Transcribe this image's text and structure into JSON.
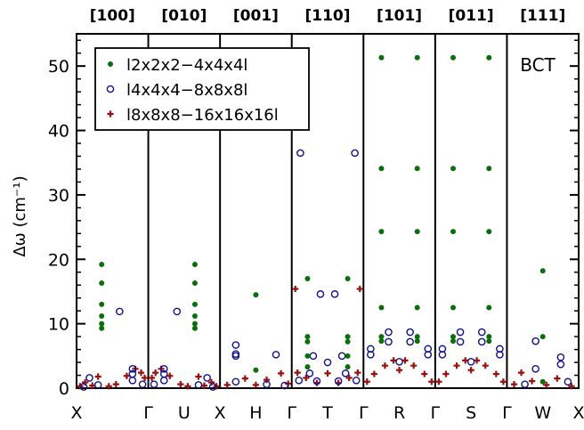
{
  "chart_data": {
    "type": "scatter",
    "title": "",
    "xlabel": "",
    "ylabel": "Δω (cm⁻¹)",
    "ylim": [
      0,
      55
    ],
    "yticks": [
      0,
      10,
      20,
      30,
      40,
      50
    ],
    "grid": false,
    "legend_placement": "top-left",
    "annotation": "BCT",
    "segments": [
      "[100]",
      "[010]",
      "[001]",
      "[110]",
      "[101]",
      "[011]",
      "[111]"
    ],
    "xlim": [
      0,
      7
    ],
    "boundaries": [
      1,
      2,
      3,
      4,
      5,
      6
    ],
    "xticks": [
      {
        "x": 0,
        "label": "X"
      },
      {
        "x": 1,
        "label": "Γ"
      },
      {
        "x": 1.5,
        "label": "U"
      },
      {
        "x": 2,
        "label": "X"
      },
      {
        "x": 2.5,
        "label": "H"
      },
      {
        "x": 3,
        "label": "Γ"
      },
      {
        "x": 3.5,
        "label": "T"
      },
      {
        "x": 4,
        "label": "Γ"
      },
      {
        "x": 4.5,
        "label": "R"
      },
      {
        "x": 5,
        "label": "Γ"
      },
      {
        "x": 5.5,
        "label": "S"
      },
      {
        "x": 6,
        "label": "Γ"
      },
      {
        "x": 6.5,
        "label": "W"
      },
      {
        "x": 7,
        "label": "X"
      }
    ],
    "series": [
      {
        "name": "l2x2x2−4x4x4l",
        "color": "#0a6e0a",
        "marker": "filled-circle",
        "points": [
          [
            0.35,
            19.2
          ],
          [
            0.35,
            16.3
          ],
          [
            0.35,
            13.0
          ],
          [
            0.35,
            11.2
          ],
          [
            0.35,
            10.0
          ],
          [
            0.35,
            9.3
          ],
          [
            1.65,
            19.2
          ],
          [
            1.65,
            16.3
          ],
          [
            1.65,
            13.0
          ],
          [
            1.65,
            11.2
          ],
          [
            1.65,
            10.0
          ],
          [
            1.65,
            9.3
          ],
          [
            2.5,
            14.5
          ],
          [
            2.5,
            2.8
          ],
          [
            3.22,
            17.0
          ],
          [
            3.22,
            8.0
          ],
          [
            3.22,
            7.2
          ],
          [
            3.22,
            5.0
          ],
          [
            3.22,
            3.3
          ],
          [
            3.78,
            17.0
          ],
          [
            3.78,
            8.0
          ],
          [
            3.78,
            7.2
          ],
          [
            3.78,
            5.0
          ],
          [
            3.78,
            3.3
          ],
          [
            4.25,
            51.3
          ],
          [
            4.25,
            34.1
          ],
          [
            4.25,
            24.3
          ],
          [
            4.25,
            12.5
          ],
          [
            4.25,
            8.0
          ],
          [
            4.25,
            7.3
          ],
          [
            4.75,
            51.3
          ],
          [
            4.75,
            34.1
          ],
          [
            4.75,
            24.3
          ],
          [
            4.75,
            12.5
          ],
          [
            4.75,
            8.0
          ],
          [
            4.75,
            7.3
          ],
          [
            5.25,
            51.3
          ],
          [
            5.25,
            34.1
          ],
          [
            5.25,
            24.3
          ],
          [
            5.25,
            12.5
          ],
          [
            5.25,
            8.0
          ],
          [
            5.25,
            7.3
          ],
          [
            5.75,
            51.3
          ],
          [
            5.75,
            34.1
          ],
          [
            5.75,
            24.3
          ],
          [
            5.75,
            12.5
          ],
          [
            5.75,
            8.0
          ],
          [
            5.75,
            7.3
          ],
          [
            6.5,
            18.2
          ],
          [
            6.5,
            8.0
          ],
          [
            6.5,
            1.0
          ]
        ]
      },
      {
        "name": "l4x4x4−8x8x8l",
        "color": "#10108c",
        "marker": "open-circle",
        "points": [
          [
            0.1,
            0.2
          ],
          [
            0.18,
            1.6
          ],
          [
            0.3,
            0.5
          ],
          [
            0.6,
            11.9
          ],
          [
            0.78,
            3.0
          ],
          [
            0.78,
            2.2
          ],
          [
            0.78,
            1.2
          ],
          [
            0.92,
            0.6
          ],
          [
            1.08,
            0.6
          ],
          [
            1.22,
            3.0
          ],
          [
            1.22,
            2.2
          ],
          [
            1.22,
            1.2
          ],
          [
            1.4,
            11.9
          ],
          [
            1.7,
            0.5
          ],
          [
            1.82,
            1.6
          ],
          [
            1.9,
            0.2
          ],
          [
            2.22,
            6.7
          ],
          [
            2.22,
            5.3
          ],
          [
            2.22,
            5.0
          ],
          [
            2.22,
            1.0
          ],
          [
            2.78,
            5.2
          ],
          [
            2.65,
            0.6
          ],
          [
            2.9,
            0.4
          ],
          [
            3.1,
            1.2
          ],
          [
            3.12,
            36.5
          ],
          [
            3.25,
            2.3
          ],
          [
            3.3,
            5.0
          ],
          [
            3.35,
            1.1
          ],
          [
            3.4,
            14.6
          ],
          [
            3.5,
            4.0
          ],
          [
            3.6,
            14.6
          ],
          [
            3.65,
            1.1
          ],
          [
            3.7,
            5.0
          ],
          [
            3.75,
            2.3
          ],
          [
            3.88,
            36.5
          ],
          [
            3.9,
            1.2
          ],
          [
            4.1,
            6.1
          ],
          [
            4.1,
            5.2
          ],
          [
            4.35,
            8.7
          ],
          [
            4.35,
            7.2
          ],
          [
            4.5,
            4.1
          ],
          [
            4.65,
            8.7
          ],
          [
            4.65,
            7.2
          ],
          [
            4.9,
            6.1
          ],
          [
            4.9,
            5.2
          ],
          [
            5.1,
            6.1
          ],
          [
            5.1,
            5.2
          ],
          [
            5.35,
            8.7
          ],
          [
            5.35,
            7.2
          ],
          [
            5.5,
            4.1
          ],
          [
            5.65,
            8.7
          ],
          [
            5.65,
            7.2
          ],
          [
            5.9,
            6.1
          ],
          [
            5.9,
            5.2
          ],
          [
            6.25,
            0.6
          ],
          [
            6.4,
            7.3
          ],
          [
            6.4,
            3.0
          ],
          [
            6.75,
            4.8
          ],
          [
            6.75,
            3.7
          ],
          [
            6.85,
            1.0
          ]
        ]
      },
      {
        "name": "l8x8x8−16x16x16l",
        "color": "#9a1010",
        "marker": "plus",
        "points": [
          [
            0.05,
            0.3
          ],
          [
            0.12,
            0.9
          ],
          [
            0.22,
            0.4
          ],
          [
            0.3,
            1.8
          ],
          [
            0.45,
            0.3
          ],
          [
            0.55,
            0.6
          ],
          [
            0.7,
            1.9
          ],
          [
            0.82,
            3.0
          ],
          [
            0.9,
            2.4
          ],
          [
            0.95,
            1.6
          ],
          [
            1.05,
            1.6
          ],
          [
            1.1,
            2.4
          ],
          [
            1.18,
            3.0
          ],
          [
            1.3,
            1.9
          ],
          [
            1.45,
            0.6
          ],
          [
            1.55,
            0.3
          ],
          [
            1.7,
            1.8
          ],
          [
            1.78,
            0.4
          ],
          [
            1.88,
            0.9
          ],
          [
            1.95,
            0.3
          ],
          [
            2.1,
            0.5
          ],
          [
            2.35,
            1.5
          ],
          [
            2.5,
            0.5
          ],
          [
            2.65,
            1.3
          ],
          [
            2.85,
            2.3
          ],
          [
            2.95,
            0.7
          ],
          [
            3.05,
            15.4
          ],
          [
            3.08,
            2.4
          ],
          [
            3.2,
            1.6
          ],
          [
            3.35,
            0.8
          ],
          [
            3.5,
            2.3
          ],
          [
            3.65,
            0.8
          ],
          [
            3.8,
            1.6
          ],
          [
            3.92,
            2.4
          ],
          [
            3.95,
            15.4
          ],
          [
            4.05,
            1.0
          ],
          [
            4.15,
            2.2
          ],
          [
            4.3,
            3.5
          ],
          [
            4.42,
            4.3
          ],
          [
            4.5,
            2.8
          ],
          [
            4.58,
            4.3
          ],
          [
            4.7,
            3.5
          ],
          [
            4.85,
            2.2
          ],
          [
            4.95,
            1.0
          ],
          [
            5.05,
            1.0
          ],
          [
            5.15,
            2.2
          ],
          [
            5.3,
            3.5
          ],
          [
            5.42,
            4.3
          ],
          [
            5.5,
            2.8
          ],
          [
            5.58,
            4.3
          ],
          [
            5.7,
            3.5
          ],
          [
            5.85,
            2.2
          ],
          [
            5.95,
            1.0
          ],
          [
            6.1,
            0.6
          ],
          [
            6.2,
            2.4
          ],
          [
            6.35,
            1.1
          ],
          [
            6.55,
            0.5
          ],
          [
            6.7,
            1.5
          ],
          [
            6.9,
            0.3
          ]
        ]
      }
    ]
  }
}
